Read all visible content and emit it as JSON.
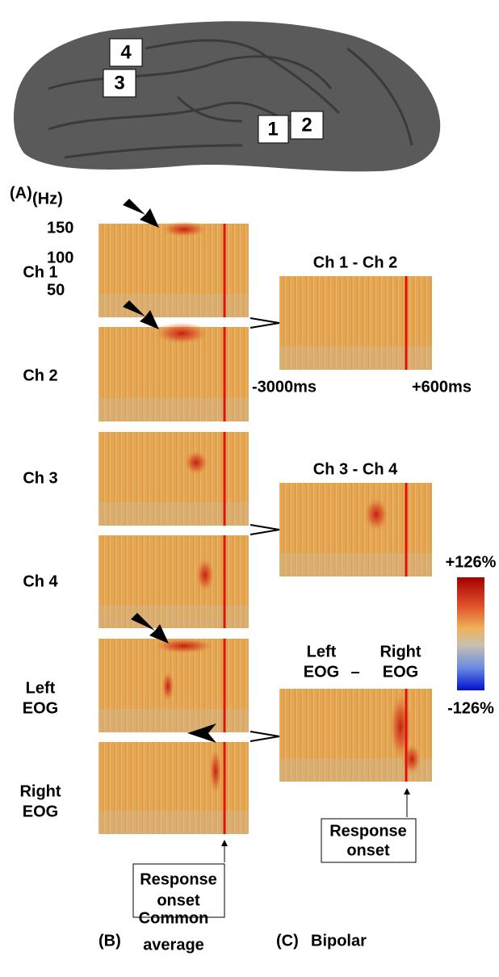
{
  "brain": {
    "electrodes": [
      "1",
      "2",
      "3",
      "4"
    ],
    "panel_label": "(A)"
  },
  "freq_axis": {
    "unit": "(Hz)",
    "ticks": [
      "150",
      "100",
      "50"
    ]
  },
  "common_average": {
    "channels": [
      [
        "Ch 1"
      ],
      [
        "Ch 2"
      ],
      [
        "Ch 3"
      ],
      [
        "Ch 4"
      ],
      [
        "Left",
        "EOG"
      ],
      [
        "Right",
        "EOG"
      ]
    ],
    "response_onset": [
      "Response",
      "onset"
    ],
    "panel_label": "(B)",
    "title": [
      "Common",
      "average"
    ]
  },
  "bipolar": {
    "pairs": [
      "Ch 1 - Ch 2",
      "Ch 3 - Ch 4"
    ],
    "eog_pair": [
      "Left",
      "EOG",
      "–",
      "Right",
      "EOG"
    ],
    "time_axis": [
      "-3000ms",
      "+600ms"
    ],
    "response_onset": [
      "Response",
      "onset"
    ],
    "panel_label": "(C)",
    "title": "Bipolar"
  },
  "colorbar": {
    "max": "+126%",
    "min": "-126%"
  }
}
